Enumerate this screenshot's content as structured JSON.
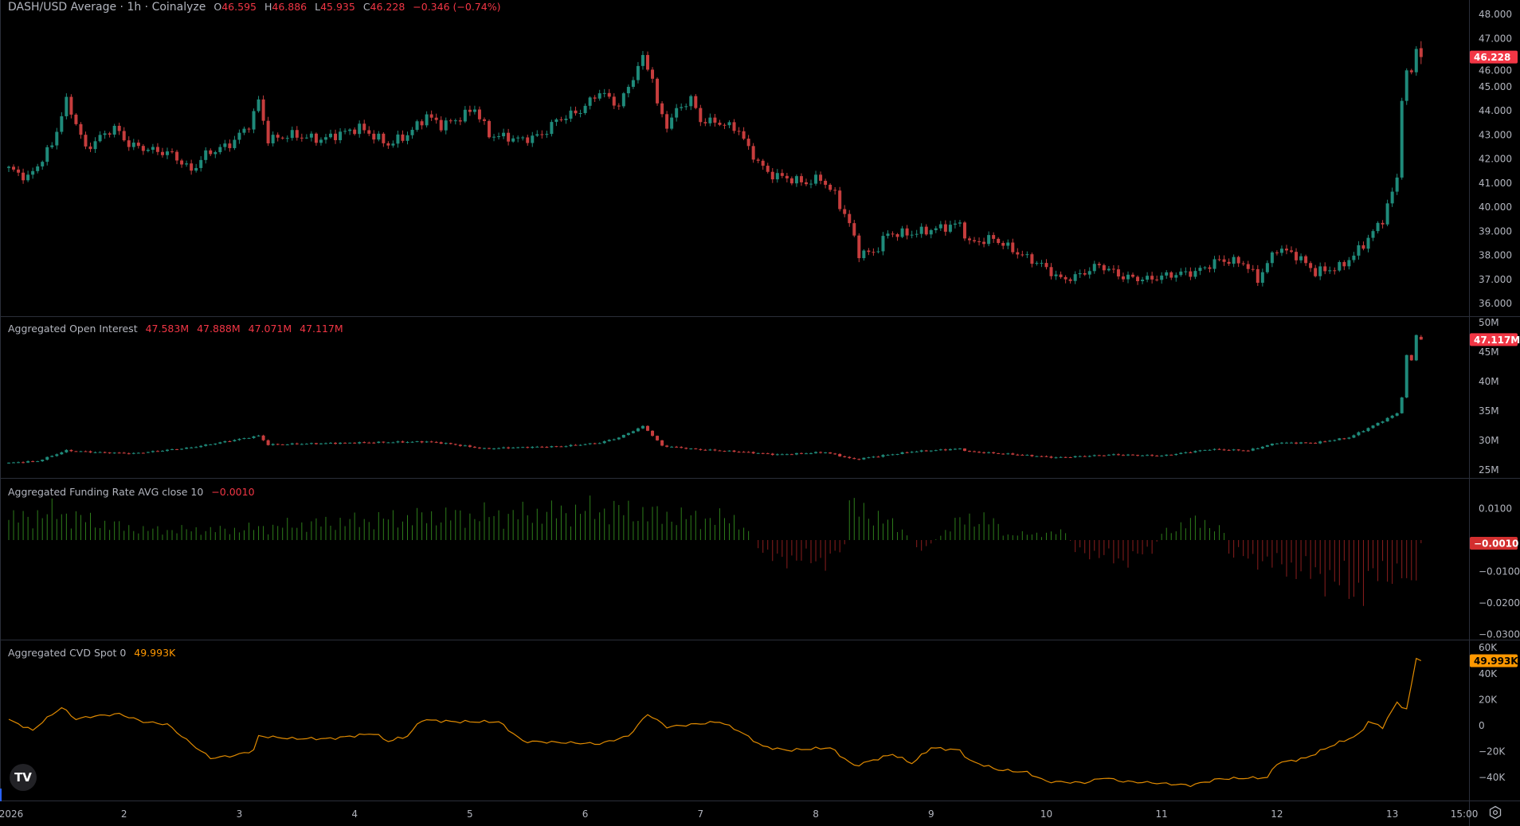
{
  "header": {
    "title": "DASH/USD Average · 1h · Coinalyze",
    "o_label": "O",
    "o": "46.595",
    "h_label": "H",
    "h": "46.886",
    "l_label": "L",
    "l": "45.935",
    "c_label": "C",
    "c": "46.228",
    "change": "−0.346 (−0.74%)"
  },
  "colors": {
    "up": "#1f8a7a",
    "down": "#c63d3d",
    "funding_up": "#2e7d1b",
    "funding_down": "#8b1e1e",
    "cvd": "#e08a00",
    "badge_red": "#f23645",
    "badge_orange": "#ff9800",
    "grid_border": "#2a2e39",
    "axis_text": "#b2b5be"
  },
  "chart_data": [
    {
      "type": "candlestick",
      "name": "DASH/USD Average",
      "interval": "1h",
      "ylim": [
        35.5,
        48.3
      ],
      "yticks": [
        "48.000",
        "47.000",
        "46.000",
        "45.000",
        "44.000",
        "43.000",
        "42.000",
        "41.000",
        "40.000",
        "39.000",
        "38.000",
        "37.000",
        "36.000"
      ],
      "last_badge": "46.228",
      "last_candle": {
        "open": 46.595,
        "high": 46.886,
        "low": 45.935,
        "close": 46.228
      },
      "close_points": [
        [
          "01-01 00:00",
          41.6
        ],
        [
          "01-01 04:00",
          41.2
        ],
        [
          "01-01 07:00",
          42.0
        ],
        [
          "01-01 09:00",
          42.6
        ],
        [
          "01-01 12:00",
          44.4
        ],
        [
          "01-01 14:00",
          43.5
        ],
        [
          "01-01 16:00",
          42.4
        ],
        [
          "01-01 19:00",
          42.9
        ],
        [
          "01-01 22:00",
          43.3
        ],
        [
          "01-02 01:00",
          42.6
        ],
        [
          "01-02 05:00",
          42.4
        ],
        [
          "01-02 10:00",
          42.2
        ],
        [
          "01-02 14:00",
          41.5
        ],
        [
          "01-02 17:00",
          42.2
        ],
        [
          "01-02 22:00",
          42.6
        ],
        [
          "01-03 02:00",
          43.4
        ],
        [
          "01-03 04:00",
          44.4
        ],
        [
          "01-03 06:00",
          42.8
        ],
        [
          "01-03 11:00",
          43.0
        ],
        [
          "01-03 17:00",
          42.8
        ],
        [
          "01-04 01:00",
          43.3
        ],
        [
          "01-04 07:00",
          42.6
        ],
        [
          "01-04 11:00",
          43.0
        ],
        [
          "01-04 15:00",
          43.8
        ],
        [
          "01-04 18:00",
          43.4
        ],
        [
          "01-04 21:00",
          43.6
        ],
        [
          "01-05 01:00",
          44.1
        ],
        [
          "01-05 04:00",
          43.0
        ],
        [
          "01-05 11:00",
          42.8
        ],
        [
          "01-05 15:00",
          43.0
        ],
        [
          "01-05 18:00",
          43.6
        ],
        [
          "01-05 23:00",
          44.0
        ],
        [
          "01-06 03:00",
          44.8
        ],
        [
          "01-06 07:00",
          44.2
        ],
        [
          "01-06 10:00",
          45.4
        ],
        [
          "01-06 12:00",
          46.2
        ],
        [
          "01-06 14:00",
          45.4
        ],
        [
          "01-06 15:00",
          44.2
        ],
        [
          "01-06 17:00",
          43.4
        ],
        [
          "01-06 19:00",
          44.0
        ],
        [
          "01-06 22:00",
          44.5
        ],
        [
          "01-07 00:00",
          43.6
        ],
        [
          "01-07 04:00",
          43.5
        ],
        [
          "01-07 08:00",
          43.2
        ],
        [
          "01-07 10:00",
          42.4
        ],
        [
          "01-07 14:00",
          41.4
        ],
        [
          "01-07 18:00",
          41.2
        ],
        [
          "01-07 22:00",
          41.0
        ],
        [
          "01-08 01:00",
          41.2
        ],
        [
          "01-08 04:00",
          40.5
        ],
        [
          "01-08 07:00",
          39.3
        ],
        [
          "01-08 09:00",
          38.1
        ],
        [
          "01-08 12:00",
          38.1
        ],
        [
          "01-08 15:00",
          38.9
        ],
        [
          "01-08 20:00",
          38.9
        ],
        [
          "01-09 01:00",
          39.1
        ],
        [
          "01-09 06:00",
          39.3
        ],
        [
          "01-09 08:00",
          38.5
        ],
        [
          "01-09 13:00",
          38.7
        ],
        [
          "01-09 18:00",
          38.1
        ],
        [
          "01-09 23:00",
          37.6
        ],
        [
          "01-10 03:00",
          37.0
        ],
        [
          "01-10 06:00",
          37.1
        ],
        [
          "01-10 11:00",
          37.6
        ],
        [
          "01-10 16:00",
          37.1
        ],
        [
          "01-10 21:00",
          37.0
        ],
        [
          "01-11 02:00",
          37.2
        ],
        [
          "01-11 07:00",
          37.3
        ],
        [
          "01-11 12:00",
          37.8
        ],
        [
          "01-11 17:00",
          37.7
        ],
        [
          "01-11 20:00",
          37.0
        ],
        [
          "01-12 00:00",
          38.3
        ],
        [
          "01-12 04:00",
          38.0
        ],
        [
          "01-12 08:00",
          37.3
        ],
        [
          "01-12 13:00",
          37.5
        ],
        [
          "01-12 16:00",
          38.0
        ],
        [
          "01-12 19:00",
          38.7
        ],
        [
          "01-12 22:00",
          39.5
        ],
        [
          "01-13 00:00",
          40.6
        ],
        [
          "01-13 01:00",
          41.2
        ],
        [
          "01-13 02:00",
          44.6
        ],
        [
          "01-13 03:00",
          45.5
        ],
        [
          "01-13 04:00",
          45.6
        ],
        [
          "01-13 05:00",
          46.6
        ],
        [
          "01-13 06:00",
          46.228
        ]
      ]
    },
    {
      "type": "candlestick",
      "name": "Aggregated Open Interest",
      "ylim": [
        23,
        51
      ],
      "yticks": [
        "50M",
        "45M",
        "40M",
        "35M",
        "30M",
        "25M"
      ],
      "legend_values": [
        "47.583M",
        "47.888M",
        "47.071M",
        "47.117M"
      ],
      "last_badge": "47.117M",
      "last_candle": {
        "open": 47.583,
        "high": 47.888,
        "low": 47.071,
        "close": 47.117
      },
      "close_points": [
        [
          "01-01 00:00",
          26.2
        ],
        [
          "01-01 06:00",
          26.5
        ],
        [
          "01-01 12:00",
          28.3
        ],
        [
          "01-01 18:00",
          28.0
        ],
        [
          "01-02 02:00",
          27.8
        ],
        [
          "01-02 14:00",
          28.8
        ],
        [
          "01-03 04:00",
          30.8
        ],
        [
          "01-03 06:00",
          29.3
        ],
        [
          "01-03 17:00",
          29.5
        ],
        [
          "01-03 23:00",
          29.6
        ],
        [
          "01-04 15:00",
          29.8
        ],
        [
          "01-04 19:00",
          29.5
        ],
        [
          "01-05 03:00",
          28.6
        ],
        [
          "01-05 09:00",
          28.8
        ],
        [
          "01-05 19:00",
          29.0
        ],
        [
          "01-06 03:00",
          29.6
        ],
        [
          "01-06 07:00",
          30.5
        ],
        [
          "01-06 12:00",
          32.4
        ],
        [
          "01-06 13:00",
          31.7
        ],
        [
          "01-06 16:00",
          29.1
        ],
        [
          "01-06 23:00",
          28.5
        ],
        [
          "01-07 08:00",
          28.1
        ],
        [
          "01-07 16:00",
          27.6
        ],
        [
          "01-08 02:00",
          28.0
        ],
        [
          "01-08 08:00",
          26.8
        ],
        [
          "01-08 20:00",
          28.1
        ],
        [
          "01-09 06:00",
          28.6
        ],
        [
          "01-09 08:00",
          28.1
        ],
        [
          "01-09 18:00",
          27.6
        ],
        [
          "01-10 02:00",
          27.1
        ],
        [
          "01-10 14:00",
          27.6
        ],
        [
          "01-11 00:00",
          27.4
        ],
        [
          "01-11 10:00",
          28.5
        ],
        [
          "01-11 18:00",
          28.3
        ],
        [
          "01-12 00:00",
          29.6
        ],
        [
          "01-12 08:00",
          29.6
        ],
        [
          "01-12 15:00",
          30.5
        ],
        [
          "01-12 19:00",
          32.1
        ],
        [
          "01-13 01:00",
          34.6
        ],
        [
          "01-13 02:00",
          37.4
        ],
        [
          "01-13 03:00",
          44.4
        ],
        [
          "01-13 04:00",
          43.6
        ],
        [
          "01-13 05:00",
          47.9
        ],
        [
          "01-13 06:00",
          47.117
        ]
      ]
    },
    {
      "type": "bar",
      "name": "Aggregated Funding Rate AVG close 10",
      "ylim": [
        -0.032,
        0.018
      ],
      "yticks": [
        "0.0100",
        "−0.0100",
        "−0.0200",
        "−0.0300"
      ],
      "legend_value": "−0.0010",
      "last_badge": "−0.0010",
      "points": [
        [
          "01-01 00:00",
          0.008
        ],
        [
          "01-01 10:00",
          0.011
        ],
        [
          "01-01 18:00",
          0.007
        ],
        [
          "01-02 04:00",
          0.004
        ],
        [
          "01-02 22:00",
          0.004
        ],
        [
          "01-03 12:00",
          0.006
        ],
        [
          "01-04 13:00",
          0.009
        ],
        [
          "01-05 09:00",
          0.01
        ],
        [
          "01-06 05:00",
          0.012
        ],
        [
          "01-06 20:00",
          0.009
        ],
        [
          "01-07 08:00",
          0.008
        ],
        [
          "01-07 11:00",
          0.0
        ],
        [
          "01-07 14:00",
          -0.007
        ],
        [
          "01-08 02:00",
          -0.008
        ],
        [
          "01-08 06:00",
          -0.003
        ],
        [
          "01-08 07:00",
          0.013
        ],
        [
          "01-08 12:00",
          0.01
        ],
        [
          "01-08 18:00",
          0.004
        ],
        [
          "01-08 22:00",
          -0.004
        ],
        [
          "01-09 02:00",
          0.002
        ],
        [
          "01-09 07:00",
          0.009
        ],
        [
          "01-09 13:00",
          0.007
        ],
        [
          "01-09 16:00",
          0.002
        ],
        [
          "01-10 04:00",
          0.003
        ],
        [
          "01-10 06:00",
          -0.004
        ],
        [
          "01-10 16:00",
          -0.008
        ],
        [
          "01-10 22:00",
          -0.004
        ],
        [
          "01-11 00:00",
          0.003
        ],
        [
          "01-11 08:00",
          0.008
        ],
        [
          "01-11 13:00",
          0.003
        ],
        [
          "01-11 14:00",
          -0.005
        ],
        [
          "01-12 01:00",
          -0.01
        ],
        [
          "01-12 11:00",
          -0.015
        ],
        [
          "01-12 16:00",
          -0.02
        ],
        [
          "01-12 21:00",
          -0.014
        ],
        [
          "01-13 02:00",
          -0.012
        ],
        [
          "01-13 04:00",
          -0.027
        ],
        [
          "01-13 05:00",
          -0.012
        ],
        [
          "01-13 06:00",
          -0.001
        ]
      ]
    },
    {
      "type": "line",
      "name": "Aggregated CVD Spot 0",
      "unit": "K",
      "ylim": [
        -55,
        63
      ],
      "yticks": [
        "60K",
        "40K",
        "20K",
        "0",
        "−20K",
        "−40K"
      ],
      "legend_value": "49.993K",
      "last_badge": "49.993K",
      "points": [
        [
          "01-01 00:00",
          4.5
        ],
        [
          "01-01 05:00",
          -3.7
        ],
        [
          "01-01 07:00",
          3
        ],
        [
          "01-01 11:00",
          14
        ],
        [
          "01-01 14:00",
          5
        ],
        [
          "01-01 17:00",
          7
        ],
        [
          "01-01 23:00",
          9
        ],
        [
          "01-02 04:00",
          3
        ],
        [
          "01-02 09:00",
          1
        ],
        [
          "01-02 14:00",
          -14
        ],
        [
          "01-02 18:00",
          -25
        ],
        [
          "01-02 23:00",
          -23
        ],
        [
          "01-03 03:00",
          -19
        ],
        [
          "01-03 04:00",
          -8
        ],
        [
          "01-03 11:00",
          -10
        ],
        [
          "01-03 19:00",
          -10
        ],
        [
          "01-04 04:00",
          -6
        ],
        [
          "01-04 07:00",
          -12
        ],
        [
          "01-04 11:00",
          -8
        ],
        [
          "01-04 14:00",
          4.5
        ],
        [
          "01-04 21:00",
          3
        ],
        [
          "01-05 06:00",
          3
        ],
        [
          "01-05 11:00",
          -12
        ],
        [
          "01-05 19:00",
          -13
        ],
        [
          "01-06 03:00",
          -14
        ],
        [
          "01-06 09:00",
          -8
        ],
        [
          "01-06 13:00",
          9
        ],
        [
          "01-06 17:00",
          -1
        ],
        [
          "01-07 04:00",
          3
        ],
        [
          "01-07 08:00",
          -4
        ],
        [
          "01-07 13:00",
          -16
        ],
        [
          "01-07 18:00",
          -19
        ],
        [
          "01-08 03:00",
          -17
        ],
        [
          "01-08 08:00",
          -31
        ],
        [
          "01-08 16:00",
          -22
        ],
        [
          "01-08 20:00",
          -29
        ],
        [
          "01-09 00:00",
          -17
        ],
        [
          "01-09 06:00",
          -19
        ],
        [
          "01-09 08:00",
          -27
        ],
        [
          "01-09 14:00",
          -34
        ],
        [
          "01-09 20:00",
          -36
        ],
        [
          "01-10 00:00",
          -43
        ],
        [
          "01-10 08:00",
          -44
        ],
        [
          "01-10 12:00",
          -40
        ],
        [
          "01-10 16:00",
          -43
        ],
        [
          "01-10 22:00",
          -44
        ],
        [
          "01-11 06:00",
          -46
        ],
        [
          "01-11 12:00",
          -41
        ],
        [
          "01-11 22:00",
          -40
        ],
        [
          "01-12 00:00",
          -29
        ],
        [
          "01-12 06:00",
          -25
        ],
        [
          "01-12 11:00",
          -16
        ],
        [
          "01-12 17:00",
          -7
        ],
        [
          "01-12 19:00",
          3
        ],
        [
          "01-12 22:00",
          -1
        ],
        [
          "01-13 01:00",
          18
        ],
        [
          "01-13 03:00",
          12
        ],
        [
          "01-13 05:00",
          52
        ],
        [
          "01-13 06:00",
          49.993
        ]
      ]
    }
  ],
  "time_axis": [
    [
      "2026",
      "01-01 00:00"
    ],
    [
      "2",
      "01-02 00:00"
    ],
    [
      "3",
      "01-03 00:00"
    ],
    [
      "4",
      "01-04 00:00"
    ],
    [
      "5",
      "01-05 00:00"
    ],
    [
      "6",
      "01-06 00:00"
    ],
    [
      "7",
      "01-07 00:00"
    ],
    [
      "8",
      "01-08 00:00"
    ],
    [
      "9",
      "01-09 00:00"
    ],
    [
      "10",
      "01-10 00:00"
    ],
    [
      "11",
      "01-11 00:00"
    ],
    [
      "12",
      "01-12 00:00"
    ],
    [
      "13",
      "01-13 00:00"
    ],
    [
      "15:00",
      "01-13 15:00"
    ]
  ],
  "icons": {
    "logo": "tradingview-logo",
    "settings": "settings-hex-icon"
  },
  "logo_text": "TV"
}
